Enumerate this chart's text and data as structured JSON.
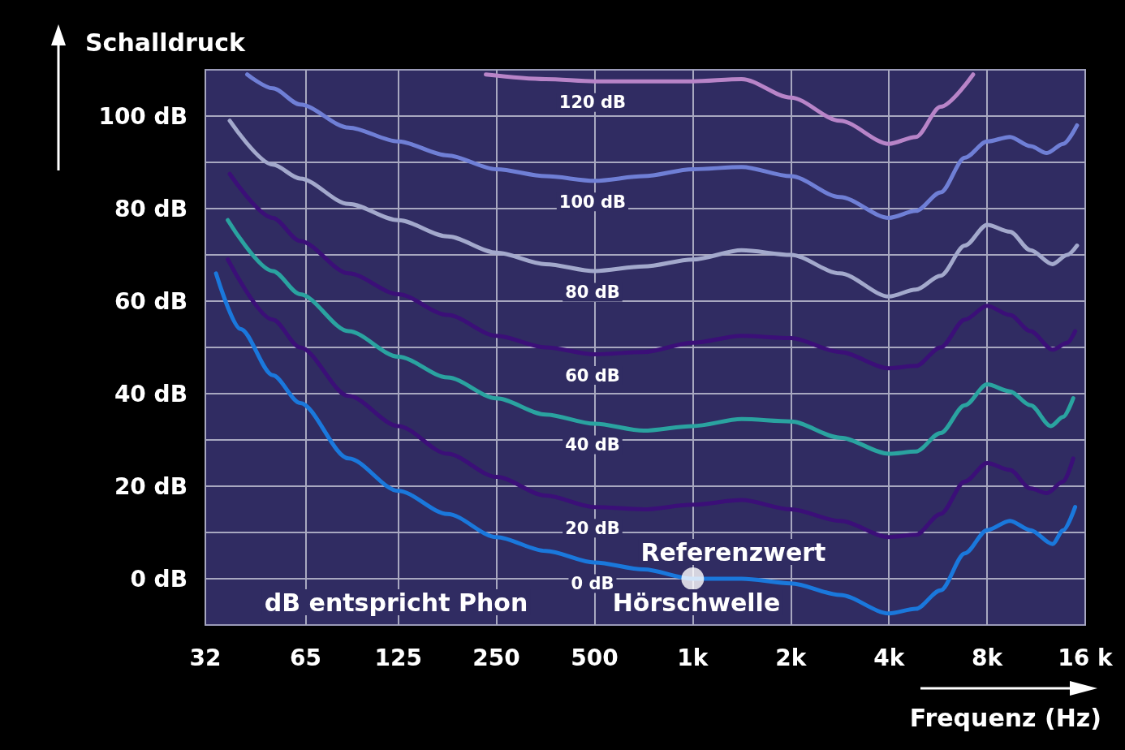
{
  "chart_data": {
    "type": "line",
    "ylabel": "Schalldruck",
    "xlabel": "Frequenz (Hz)",
    "log": "x",
    "grid": true,
    "xlim": [
      32,
      16000
    ],
    "ylim": [
      -10,
      110
    ],
    "xticks": [
      32,
      65,
      125,
      250,
      500,
      {
        "value": 1000,
        "label": "1k"
      },
      {
        "value": 2000,
        "label": "2k"
      },
      {
        "value": 4000,
        "label": "4k"
      },
      {
        "value": 8000,
        "label": "8k"
      },
      {
        "value": 16000,
        "label": "16 k"
      }
    ],
    "yticks": [
      {
        "value": 0,
        "label": "0 dB"
      },
      {
        "value": 10,
        "label": null
      },
      {
        "value": 20,
        "label": "20 dB"
      },
      {
        "value": 30,
        "label": null
      },
      {
        "value": 40,
        "label": "40 dB"
      },
      {
        "value": 50,
        "label": null
      },
      {
        "value": 60,
        "label": "60 dB"
      },
      {
        "value": 70,
        "label": null
      },
      {
        "value": 80,
        "label": "80 dB"
      },
      {
        "value": 90,
        "label": null
      },
      {
        "value": 100,
        "label": "100 dB"
      }
    ],
    "series": [
      {
        "name": "120 dB",
        "color": "#b884c8",
        "x": [
          232,
          354,
          500,
          707,
          1000,
          1414,
          2000,
          2828,
          4000,
          4840,
          5760,
          7250
        ],
        "values": [
          109,
          108,
          107.5,
          107.5,
          107.5,
          108,
          104,
          99,
          94,
          95.5,
          102,
          109
        ]
      },
      {
        "name": "100 dB",
        "color": "#6f7fd6",
        "x": [
          43,
          51.5,
          62.5,
          88,
          125,
          177,
          250,
          354,
          500,
          707,
          1000,
          1414,
          2000,
          2828,
          4000,
          4840,
          5760,
          6840,
          8000,
          9400,
          10870,
          12200,
          13700,
          15100
        ],
        "values": [
          109,
          106,
          102.5,
          97.5,
          94.5,
          91.5,
          88.5,
          87,
          86,
          87,
          88.5,
          89,
          87,
          82.5,
          78,
          79.5,
          83.5,
          91,
          94.5,
          95.5,
          93.5,
          92,
          94,
          98
        ]
      },
      {
        "name": "80 dB",
        "color": "#a3a9cc",
        "x": [
          38,
          51.5,
          62.5,
          88,
          125,
          177,
          250,
          354,
          500,
          707,
          1000,
          1414,
          2000,
          2828,
          4000,
          4840,
          5760,
          6840,
          8000,
          9400,
          10870,
          12700,
          14100,
          15100
        ],
        "values": [
          99,
          89.5,
          86.5,
          81,
          77.5,
          74,
          70.5,
          68,
          66.5,
          67.5,
          69,
          71,
          70,
          66,
          61,
          62.5,
          65.5,
          72,
          76.5,
          75,
          71,
          68,
          70,
          72
        ]
      },
      {
        "name": "60 dB",
        "color": "#3b0f78",
        "x": [
          38,
          51.5,
          62.5,
          88,
          125,
          177,
          250,
          354,
          500,
          707,
          1000,
          1414,
          2000,
          2828,
          4000,
          4840,
          5760,
          6840,
          8000,
          9400,
          10870,
          12700,
          14100,
          14900
        ],
        "values": [
          87.5,
          78,
          73,
          66,
          61.5,
          57,
          52.5,
          50,
          48.5,
          49,
          51,
          52.5,
          52,
          49,
          45.5,
          46,
          50,
          56,
          59,
          57,
          53.5,
          49.5,
          51,
          53.5
        ]
      },
      {
        "name": "40 dB",
        "color": "#2aa3a0",
        "x": [
          37.5,
          51.5,
          62.5,
          88,
          125,
          177,
          250,
          354,
          500,
          707,
          1000,
          1414,
          2000,
          2828,
          4000,
          4840,
          5760,
          6840,
          8000,
          9400,
          10870,
          12550,
          13700,
          14700
        ],
        "values": [
          77.5,
          66.5,
          61.5,
          53.5,
          48,
          43.5,
          39,
          35.5,
          33.5,
          32,
          33,
          34.5,
          34,
          30.5,
          27,
          27.5,
          31.5,
          37.5,
          42,
          40.5,
          37.5,
          33,
          35,
          39
        ]
      },
      {
        "name": "20 dB",
        "color": "#3b0f78",
        "x": [
          37.5,
          51.5,
          62.5,
          88,
          125,
          177,
          250,
          354,
          500,
          707,
          1000,
          1414,
          2000,
          2828,
          4000,
          4840,
          5760,
          6840,
          8000,
          9400,
          10870,
          12200,
          13700,
          14700
        ],
        "values": [
          69,
          56,
          50,
          39.5,
          33,
          27,
          22,
          18,
          15.5,
          15,
          16,
          17,
          15,
          12.5,
          9,
          9.5,
          14,
          21,
          25,
          23.5,
          19.5,
          18.5,
          21,
          26
        ]
      },
      {
        "name": "0 dB",
        "color": "#1a78dc",
        "x": [
          34.5,
          41,
          51.5,
          62.5,
          88,
          125,
          177,
          250,
          354,
          500,
          707,
          1000,
          1414,
          2000,
          2828,
          4000,
          4840,
          5760,
          6840,
          8000,
          9400,
          10870,
          12700,
          13700,
          14900
        ],
        "values": [
          66,
          54,
          44,
          38,
          26,
          19,
          14,
          9,
          6,
          3.5,
          2,
          0,
          0,
          -1,
          -3.5,
          -7.5,
          -6.5,
          -2.5,
          5.5,
          10.5,
          12.5,
          10.5,
          7.5,
          10.5,
          15.5
        ]
      }
    ],
    "annotations": [
      "dB entspricht Phon",
      {
        "text": "Referenzwert",
        "x": 1000,
        "y": 0
      },
      "Hörschwelle"
    ]
  }
}
